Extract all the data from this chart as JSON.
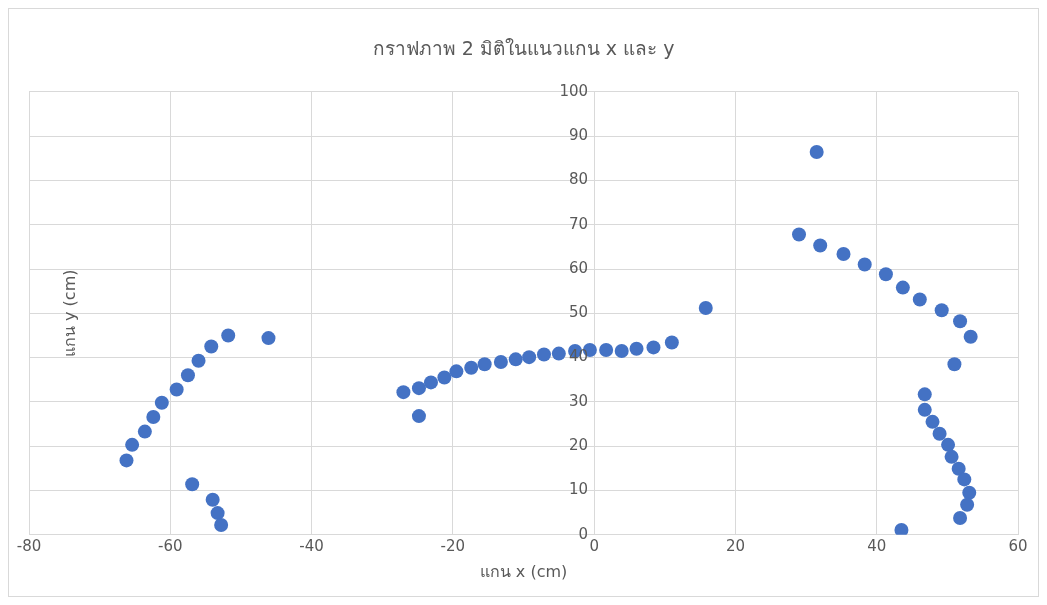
{
  "chart_data": {
    "type": "scatter",
    "title": "กราฟภาพ 2 มิติในแนวแกน x และ y",
    "xlabel": "แกน x (cm)",
    "ylabel": "แกน y (cm)",
    "x": [
      -51.8,
      -54.2,
      -56.0,
      -57.5,
      -59.1,
      -61.2,
      -62.4,
      -63.6,
      -65.4,
      -66.2,
      -46.1,
      -56.9,
      -54.0,
      -53.3,
      -52.8,
      -27.0,
      -24.8,
      -24.8,
      -23.1,
      -21.2,
      -19.5,
      -17.4,
      -15.5,
      -13.2,
      -11.1,
      -9.2,
      -7.1,
      -5.0,
      -2.7,
      -0.6,
      1.7,
      3.9,
      6.0,
      8.4,
      11.0,
      15.8,
      31.5,
      29.0,
      32.0,
      35.3,
      38.3,
      41.3,
      43.7,
      46.1,
      49.2,
      51.8,
      53.3,
      51.0,
      46.8,
      46.8,
      47.9,
      48.9,
      50.1,
      50.6,
      51.6,
      52.4,
      53.1,
      52.8,
      51.8,
      43.5
    ],
    "series": [
      {
        "color": "#4472c4",
        "values": [
          45.0,
          42.5,
          39.3,
          36.0,
          32.8,
          29.8,
          26.6,
          23.3,
          20.3,
          16.8,
          44.4,
          11.4,
          7.9,
          4.9,
          2.2,
          32.2,
          33.1,
          26.8,
          34.4,
          35.5,
          36.9,
          37.7,
          38.5,
          39.0,
          39.6,
          40.1,
          40.7,
          40.9,
          41.5,
          41.7,
          41.7,
          41.5,
          42.0,
          42.3,
          43.4,
          51.2,
          86.4,
          67.8,
          65.3,
          63.4,
          61.0,
          58.8,
          55.8,
          53.1,
          50.7,
          48.2,
          44.7,
          38.5,
          31.7,
          28.2,
          25.5,
          22.8,
          20.3,
          17.6,
          14.9,
          12.5,
          9.5,
          6.8,
          3.8,
          1.1
        ]
      }
    ],
    "xlim": [
      -80,
      60
    ],
    "xticks": [
      -80,
      -60,
      -40,
      -20,
      0,
      20,
      40,
      60
    ],
    "ylim": [
      0,
      100
    ],
    "yticks": [
      0,
      10,
      20,
      30,
      40,
      50,
      60,
      70,
      80,
      90,
      100
    ],
    "grid": true,
    "marker": "circle"
  }
}
